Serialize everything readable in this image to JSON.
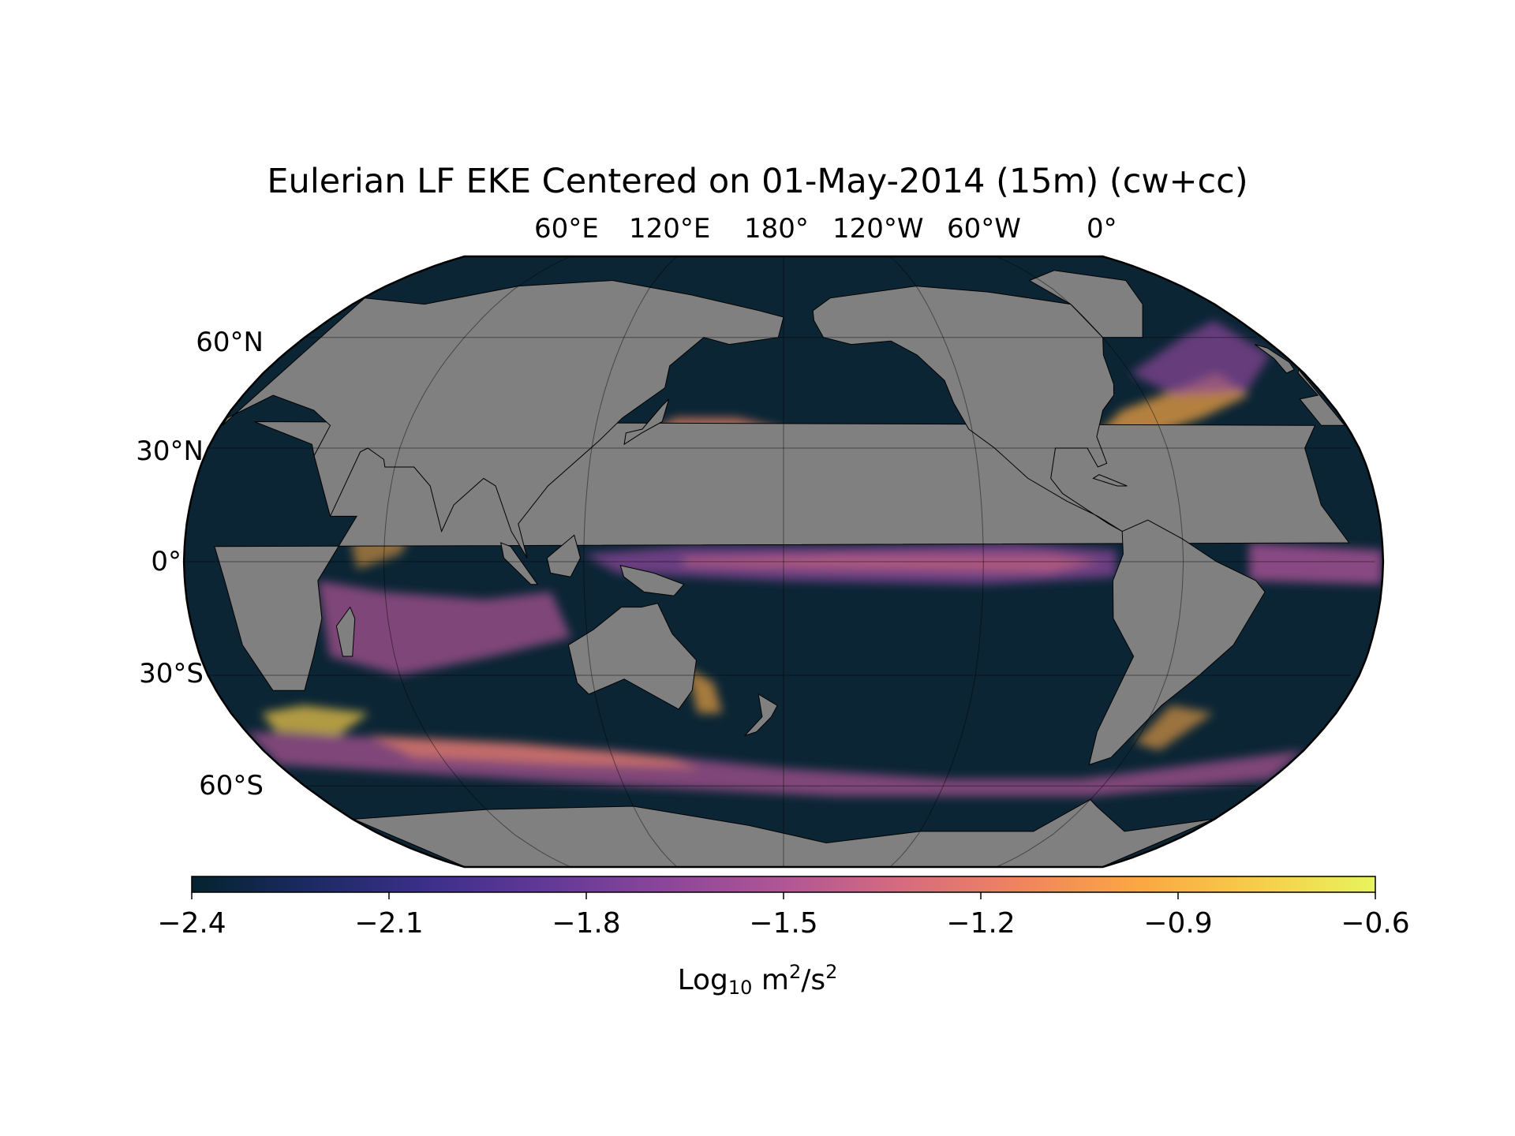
{
  "title": "Eulerian LF EKE Centered on 01-May-2014 (15m) (cw+cc)",
  "map": {
    "projection": "Robinson",
    "central_longitude": "180°",
    "land_color": "#808080",
    "ocean_background_color": "#0b2535",
    "lon_labels": [
      "60°E",
      "120°E",
      "180°",
      "120°W",
      "60°W",
      "0°"
    ],
    "lat_labels": [
      "60°N",
      "30°N",
      "0°",
      "30°S",
      "60°S"
    ]
  },
  "colorbar": {
    "colormap": "thermal",
    "ticks": [
      "−2.4",
      "−2.1",
      "−1.8",
      "−1.5",
      "−1.2",
      "−0.9",
      "−0.6"
    ],
    "label_base": "Log",
    "label_sub": "10",
    "label_unit1": " m",
    "label_sup1": "2",
    "label_unit2": "/s",
    "label_sup2": "2",
    "range": [
      -2.4,
      -0.6
    ],
    "colors": [
      "#04232d",
      "#1c2a63",
      "#3c2f8a",
      "#623997",
      "#8b4699",
      "#b05695",
      "#d66b7f",
      "#f0845f",
      "#fba742",
      "#f6cd4a",
      "#e8f45e"
    ]
  }
}
